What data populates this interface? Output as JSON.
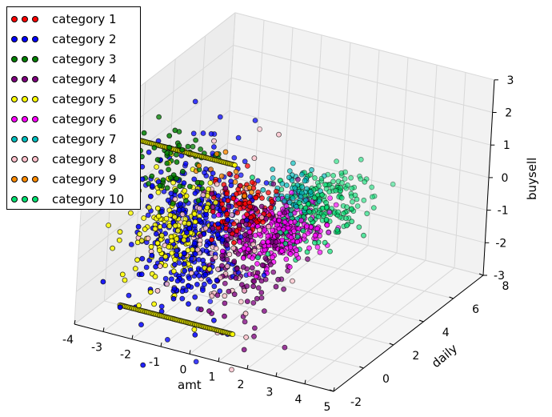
{
  "chart_data": {
    "type": "scatter",
    "projection": "3d",
    "title": "",
    "xlabel": "amt",
    "ylabel": "daily",
    "zlabel": "buysell",
    "xlim": [
      -4,
      5
    ],
    "ylim": [
      -2,
      8
    ],
    "zlim": [
      -3,
      3
    ],
    "xticks": [
      "-4",
      "-3",
      "-2",
      "-1",
      "0",
      "1",
      "2",
      "3",
      "4",
      "5"
    ],
    "yticks": [
      "-2",
      "0",
      "2",
      "4",
      "6",
      "8"
    ],
    "zticks": [
      "-3",
      "-2",
      "-1",
      "0",
      "1",
      "2",
      "3"
    ],
    "legend_position": "top-left",
    "series": [
      {
        "name": "category 1",
        "color": "#ff0000",
        "clusters": [
          {
            "center": [
              -0.5,
              2,
              0
            ],
            "spread": [
              0.5,
              0.6,
              0.4
            ],
            "n": 90
          }
        ]
      },
      {
        "name": "category 2",
        "color": "#0000ff",
        "clusters": [
          {
            "center": [
              -2.0,
              2,
              -1.1
            ],
            "spread": [
              0.8,
              1.0,
              1.2
            ],
            "n": 380
          }
        ]
      },
      {
        "name": "category 3",
        "color": "#008000",
        "clusters": [
          {
            "center": [
              -2.3,
              1,
              1
            ],
            "spread": [
              0.6,
              0.6,
              0.6
            ],
            "n": 70
          }
        ]
      },
      {
        "name": "category 4",
        "color": "#800080",
        "clusters": [
          {
            "center": [
              -0.15,
              2,
              -1.5
            ],
            "spread": [
              0.6,
              0.8,
              1.0
            ],
            "n": 150
          }
        ]
      },
      {
        "name": "category 5",
        "color": "#ffff00",
        "clusters": [
          {
            "center": [
              -2,
              0.5,
              1.9
            ],
            "spread": [
              1.15,
              0,
              0
            ],
            "n": 90,
            "line": true
          },
          {
            "center": [
              -1.5,
              0,
              -3
            ],
            "spread": [
              1.15,
              0,
              0
            ],
            "n": 90,
            "line": true
          },
          {
            "center": [
              -2.3,
              1,
              -0.8
            ],
            "spread": [
              0.6,
              0.8,
              0.8
            ],
            "n": 160
          }
        ]
      },
      {
        "name": "category 6",
        "color": "#ff00ff",
        "clusters": [
          {
            "center": [
              0.4,
              3,
              -1
            ],
            "spread": [
              0.6,
              0.8,
              0.4
            ],
            "n": 260
          }
        ]
      },
      {
        "name": "category 7",
        "color": "#00bfbf",
        "clusters": [
          {
            "center": [
              0.4,
              4,
              0
            ],
            "spread": [
              0.5,
              0.7,
              0.3
            ],
            "n": 60
          }
        ]
      },
      {
        "name": "category 8",
        "color": "#ffc0cb",
        "clusters": [
          {
            "center": [
              -1,
              2,
              -1
            ],
            "spread": [
              0.9,
              1.2,
              1.2
            ],
            "n": 90
          }
        ]
      },
      {
        "name": "category 9",
        "color": "#ff8c00",
        "clusters": [
          {
            "center": [
              -1,
              1.5,
              1
            ],
            "spread": [
              0.7,
              0.6,
              0.5
            ],
            "n": 15
          }
        ]
      },
      {
        "name": "category 10",
        "color": "#00e070",
        "clusters": [
          {
            "center": [
              0.7,
              5,
              -0.85
            ],
            "spread": [
              0.6,
              1.1,
              0.4
            ],
            "n": 230
          }
        ]
      }
    ]
  }
}
